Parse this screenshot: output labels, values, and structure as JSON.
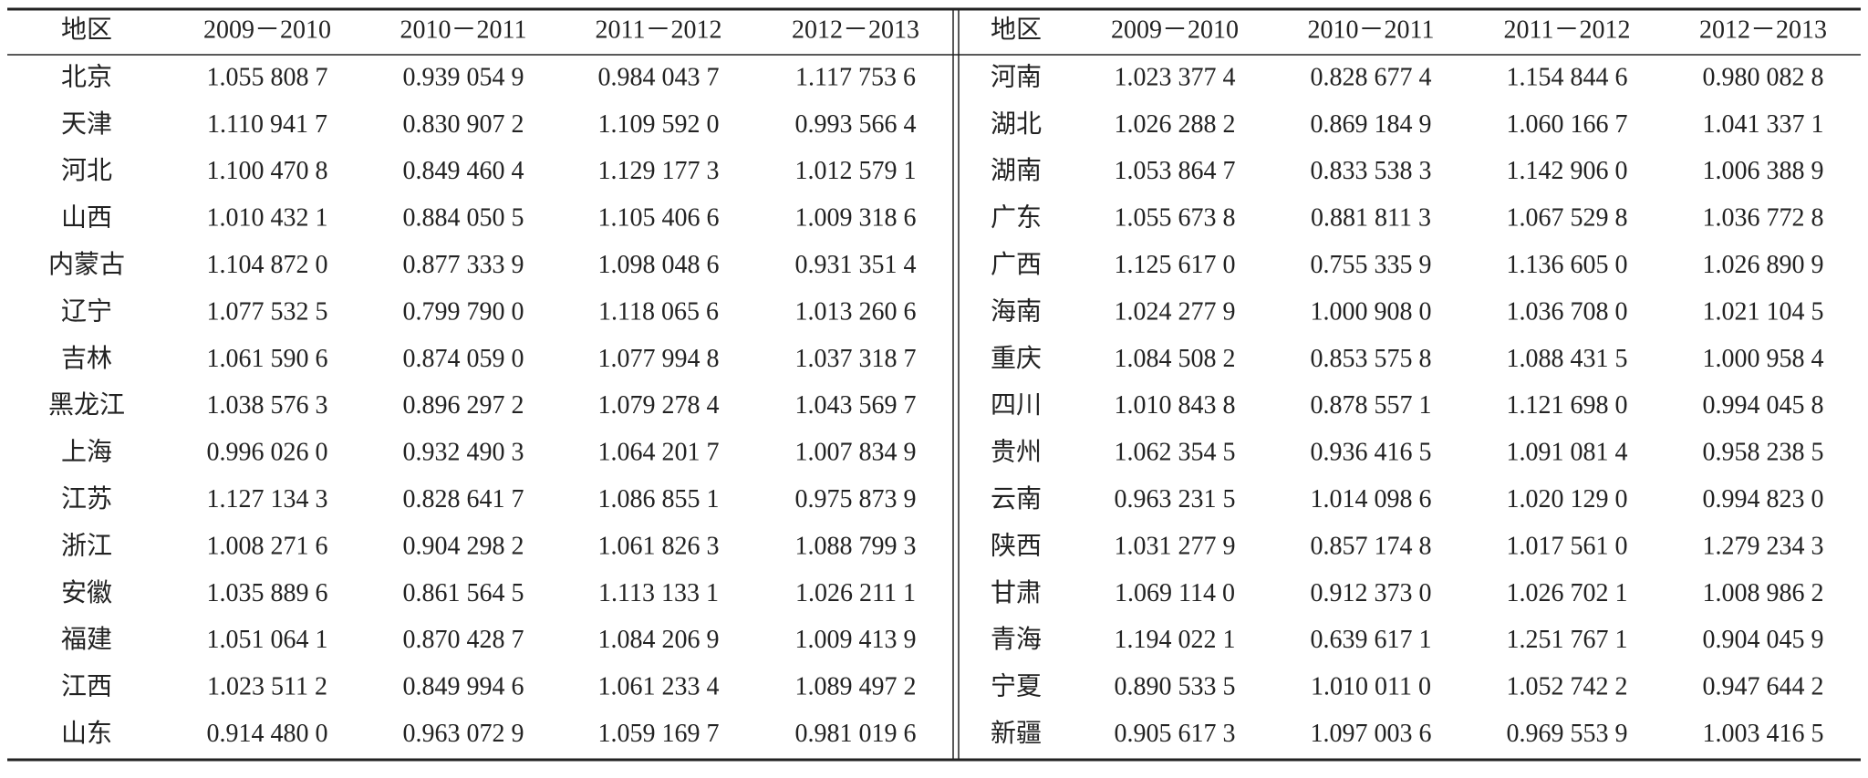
{
  "table": {
    "left": {
      "header": [
        "地区",
        "2009－2010",
        "2010－2011",
        "2011－2012",
        "2012－2013"
      ],
      "rows": [
        [
          "北京",
          "1.055 808 7",
          "0.939 054 9",
          "0.984 043 7",
          "1.117 753 6"
        ],
        [
          "天津",
          "1.110 941 7",
          "0.830 907 2",
          "1.109 592 0",
          "0.993 566 4"
        ],
        [
          "河北",
          "1.100 470 8",
          "0.849 460 4",
          "1.129 177 3",
          "1.012 579 1"
        ],
        [
          "山西",
          "1.010 432 1",
          "0.884 050 5",
          "1.105 406 6",
          "1.009 318 6"
        ],
        [
          "内蒙古",
          "1.104 872 0",
          "0.877 333 9",
          "1.098 048 6",
          "0.931 351 4"
        ],
        [
          "辽宁",
          "1.077 532 5",
          "0.799 790 0",
          "1.118 065 6",
          "1.013 260 6"
        ],
        [
          "吉林",
          "1.061 590 6",
          "0.874 059 0",
          "1.077 994 8",
          "1.037 318 7"
        ],
        [
          "黑龙江",
          "1.038 576 3",
          "0.896 297 2",
          "1.079 278 4",
          "1.043 569 7"
        ],
        [
          "上海",
          "0.996 026 0",
          "0.932 490 3",
          "1.064 201 7",
          "1.007 834 9"
        ],
        [
          "江苏",
          "1.127 134 3",
          "0.828 641 7",
          "1.086 855 1",
          "0.975 873 9"
        ],
        [
          "浙江",
          "1.008 271 6",
          "0.904 298 2",
          "1.061 826 3",
          "1.088 799 3"
        ],
        [
          "安徽",
          "1.035 889 6",
          "0.861 564 5",
          "1.113 133 1",
          "1.026 211 1"
        ],
        [
          "福建",
          "1.051 064 1",
          "0.870 428 7",
          "1.084 206 9",
          "1.009 413 9"
        ],
        [
          "江西",
          "1.023 511 2",
          "0.849 994 6",
          "1.061 233 4",
          "1.089 497 2"
        ],
        [
          "山东",
          "0.914 480 0",
          "0.963 072 9",
          "1.059 169 7",
          "0.981 019 6"
        ]
      ]
    },
    "right": {
      "header": [
        "地区",
        "2009－2010",
        "2010－2011",
        "2011－2012",
        "2012－2013"
      ],
      "rows": [
        [
          "河南",
          "1.023 377 4",
          "0.828 677 4",
          "1.154 844 6",
          "0.980 082 8"
        ],
        [
          "湖北",
          "1.026 288 2",
          "0.869 184 9",
          "1.060 166 7",
          "1.041 337 1"
        ],
        [
          "湖南",
          "1.053 864 7",
          "0.833 538 3",
          "1.142 906 0",
          "1.006 388 9"
        ],
        [
          "广东",
          "1.055 673 8",
          "0.881 811 3",
          "1.067 529 8",
          "1.036 772 8"
        ],
        [
          "广西",
          "1.125 617 0",
          "0.755 335 9",
          "1.136 605 0",
          "1.026 890 9"
        ],
        [
          "海南",
          "1.024 277 9",
          "1.000 908 0",
          "1.036 708 0",
          "1.021 104 5"
        ],
        [
          "重庆",
          "1.084 508 2",
          "0.853 575 8",
          "1.088 431 5",
          "1.000 958 4"
        ],
        [
          "四川",
          "1.010 843 8",
          "0.878 557 1",
          "1.121 698 0",
          "0.994 045 8"
        ],
        [
          "贵州",
          "1.062 354 5",
          "0.936 416 5",
          "1.091 081 4",
          "0.958 238 5"
        ],
        [
          "云南",
          "0.963 231 5",
          "1.014 098 6",
          "1.020 129 0",
          "0.994 823 0"
        ],
        [
          "陕西",
          "1.031 277 9",
          "0.857 174 8",
          "1.017 561 0",
          "1.279 234 3"
        ],
        [
          "甘肃",
          "1.069 114 0",
          "0.912 373 0",
          "1.026 702 1",
          "1.008 986 2"
        ],
        [
          "青海",
          "1.194 022 1",
          "0.639 617 1",
          "1.251 767 1",
          "0.904 045 9"
        ],
        [
          "宁夏",
          "0.890 533 5",
          "1.010 011 0",
          "1.052 742 2",
          "0.947 644 2"
        ],
        [
          "新疆",
          "0.905 617 3",
          "1.097 003 6",
          "0.969 553 9",
          "1.003 416 5"
        ]
      ]
    }
  }
}
